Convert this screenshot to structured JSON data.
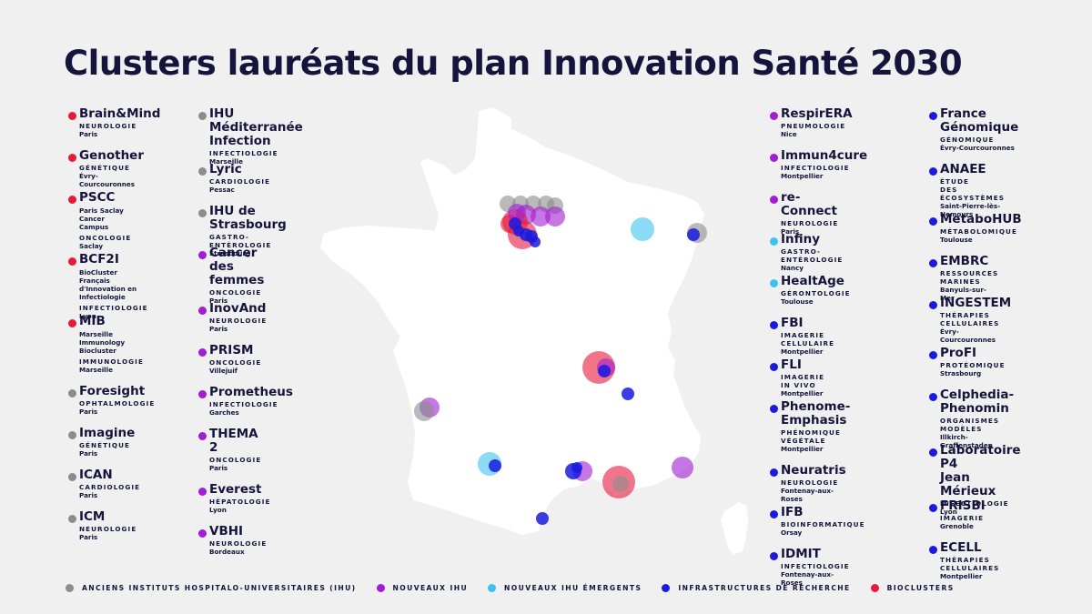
{
  "title": "Clusters lauréats du plan Innovation Santé 2030",
  "colors": {
    "ihu_anciens": "#8c8c8c",
    "ihu_nouveaux": "#a21cd1",
    "ihu_emergents": "#3ec1f0",
    "infrastructures": "#1a1ae0",
    "bioclusters": "#e8193c",
    "map_land": "#ffffff",
    "background": "#f0f0f0"
  },
  "columns": [
    {
      "entries": [
        {
          "name": "Brain&Mind",
          "group": "bioclusters",
          "lines": [
            {
              "t": "NEUROLOGIE",
              "k": "cat"
            },
            {
              "t": "Paris",
              "k": "loc"
            }
          ]
        },
        {
          "name": "Genother",
          "group": "bioclusters",
          "lines": [
            {
              "t": "GÉNÉTIQUE",
              "k": "cat"
            },
            {
              "t": "Évry-Courcouronnes",
              "k": "loc"
            }
          ]
        },
        {
          "name": "PSCC",
          "group": "bioclusters",
          "lines": [
            {
              "t": "Paris Saclay\nCancer Campus",
              "k": "org"
            },
            {
              "t": "ONCOLOGIE",
              "k": "cat"
            },
            {
              "t": "Saclay",
              "k": "loc"
            }
          ]
        },
        {
          "name": "BCF2I",
          "group": "bioclusters",
          "lines": [
            {
              "t": "BioCluster Français\nd'Innovation en Infectiologie",
              "k": "org"
            },
            {
              "t": "INFECTIOLOGIE",
              "k": "cat"
            },
            {
              "t": "Lyon",
              "k": "loc"
            }
          ]
        },
        {
          "name": "MIB",
          "group": "bioclusters",
          "lines": [
            {
              "t": "Marseille Immunology Biocluster",
              "k": "org"
            },
            {
              "t": "IMMUNOLOGIE",
              "k": "cat"
            },
            {
              "t": "Marseille",
              "k": "loc"
            }
          ]
        },
        {
          "name": "Foresight",
          "group": "ihu_anciens",
          "lines": [
            {
              "t": "OPHTALMOLOGIE",
              "k": "cat"
            },
            {
              "t": "Paris",
              "k": "loc"
            }
          ]
        },
        {
          "name": "Imagine",
          "group": "ihu_anciens",
          "lines": [
            {
              "t": "GÉNÉTIQUE",
              "k": "cat"
            },
            {
              "t": "Paris",
              "k": "loc"
            }
          ]
        },
        {
          "name": "ICAN",
          "group": "ihu_anciens",
          "lines": [
            {
              "t": "CARDIOLOGIE",
              "k": "cat"
            },
            {
              "t": "Paris",
              "k": "loc"
            }
          ]
        },
        {
          "name": "ICM",
          "group": "ihu_anciens",
          "lines": [
            {
              "t": "NEUROLOGIE",
              "k": "cat"
            },
            {
              "t": "Paris",
              "k": "loc"
            }
          ]
        }
      ]
    },
    {
      "entries": [
        {
          "name": "IHU Méditerranée\nInfection",
          "group": "ihu_anciens",
          "lines": [
            {
              "t": "INFECTIOLOGIE",
              "k": "cat"
            },
            {
              "t": "Marseille",
              "k": "loc"
            }
          ]
        },
        {
          "name": "Lyric",
          "group": "ihu_anciens",
          "lines": [
            {
              "t": "CARDIOLOGIE",
              "k": "cat"
            },
            {
              "t": "Pessac",
              "k": "loc"
            }
          ]
        },
        {
          "name": "IHU de Strasbourg",
          "group": "ihu_anciens",
          "lines": [
            {
              "t": "GASTRO-ENTÉROLOGIE",
              "k": "cat"
            },
            {
              "t": "Strasbourg",
              "k": "loc"
            }
          ]
        },
        {
          "name": "Cancer des femmes",
          "group": "ihu_nouveaux",
          "lines": [
            {
              "t": "ONCOLOGIE",
              "k": "cat"
            },
            {
              "t": "Paris",
              "k": "loc"
            }
          ]
        },
        {
          "name": "InovAnd",
          "group": "ihu_nouveaux",
          "lines": [
            {
              "t": "NEUROLOGIE",
              "k": "cat"
            },
            {
              "t": "Paris",
              "k": "loc"
            }
          ]
        },
        {
          "name": "PRISM",
          "group": "ihu_nouveaux",
          "lines": [
            {
              "t": "ONCOLOGIE",
              "k": "cat"
            },
            {
              "t": "Villejuif",
              "k": "loc"
            }
          ]
        },
        {
          "name": "Prometheus",
          "group": "ihu_nouveaux",
          "lines": [
            {
              "t": "INFECTIOLOGIE",
              "k": "cat"
            },
            {
              "t": "Garches",
              "k": "loc"
            }
          ]
        },
        {
          "name": "THEMA 2",
          "group": "ihu_nouveaux",
          "lines": [
            {
              "t": "ONCOLOGIE",
              "k": "cat"
            },
            {
              "t": "Paris",
              "k": "loc"
            }
          ]
        },
        {
          "name": "Everest",
          "group": "ihu_nouveaux",
          "lines": [
            {
              "t": "HÉPATOLOGIE",
              "k": "cat"
            },
            {
              "t": "Lyon",
              "k": "loc"
            }
          ]
        },
        {
          "name": "VBHI",
          "group": "ihu_nouveaux",
          "lines": [
            {
              "t": "NEUROLOGIE",
              "k": "cat"
            },
            {
              "t": "Bordeaux",
              "k": "loc"
            }
          ]
        }
      ]
    },
    {
      "entries": [
        {
          "name": "RespirERA",
          "group": "ihu_nouveaux",
          "lines": [
            {
              "t": "PNEUMOLOGIE",
              "k": "cat"
            },
            {
              "t": "Nice",
              "k": "loc"
            }
          ]
        },
        {
          "name": "Immun4cure",
          "group": "ihu_nouveaux",
          "lines": [
            {
              "t": "INFECTIOLOGIE",
              "k": "cat"
            },
            {
              "t": "Montpellier",
              "k": "loc"
            }
          ]
        },
        {
          "name": "re-Connect",
          "group": "ihu_nouveaux",
          "lines": [
            {
              "t": "NEUROLOGIE",
              "k": "cat"
            },
            {
              "t": "Paris",
              "k": "loc"
            }
          ]
        },
        {
          "name": "Infiny",
          "group": "ihu_emergents",
          "lines": [
            {
              "t": "GASTRO-ENTÉROLOGIE",
              "k": "cat"
            },
            {
              "t": "Nancy",
              "k": "loc"
            }
          ]
        },
        {
          "name": "HealtAge",
          "group": "ihu_emergents",
          "lines": [
            {
              "t": "GÉRONTOLOGIE",
              "k": "cat"
            },
            {
              "t": "Toulouse",
              "k": "loc"
            }
          ]
        },
        {
          "name": "FBI",
          "group": "infrastructures",
          "lines": [
            {
              "t": "IMAGERIE CELLULAIRE",
              "k": "cat"
            },
            {
              "t": "Montpellier",
              "k": "loc"
            }
          ]
        },
        {
          "name": "FLI",
          "group": "infrastructures",
          "lines": [
            {
              "t": "IMAGERIE IN VIVO",
              "k": "cat"
            },
            {
              "t": "Montpellier",
              "k": "loc"
            }
          ]
        },
        {
          "name": "Phenome-Emphasis",
          "group": "infrastructures",
          "lines": [
            {
              "t": "PHÉNOMIQUE VÉGÉTALE",
              "k": "cat"
            },
            {
              "t": "Montpellier",
              "k": "loc"
            }
          ]
        },
        {
          "name": "Neuratris",
          "group": "infrastructures",
          "lines": [
            {
              "t": "NEUROLOGIE",
              "k": "cat"
            },
            {
              "t": "Fontenay-aux-Roses",
              "k": "loc"
            }
          ]
        },
        {
          "name": "IFB",
          "group": "infrastructures",
          "lines": [
            {
              "t": "BIOINFORMATIQUE",
              "k": "cat"
            },
            {
              "t": "Orsay",
              "k": "loc"
            }
          ]
        },
        {
          "name": "IDMIT",
          "group": "infrastructures",
          "lines": [
            {
              "t": "INFECTIOLOGIE",
              "k": "cat"
            },
            {
              "t": "Fontenay-aux-Roses",
              "k": "loc"
            }
          ]
        }
      ]
    },
    {
      "entries": [
        {
          "name": "France\nGénomique",
          "group": "infrastructures",
          "lines": [
            {
              "t": "GÉNOMIQUE",
              "k": "cat"
            },
            {
              "t": "Évry-Courcouronnes",
              "k": "loc"
            }
          ]
        },
        {
          "name": "ANAEE",
          "group": "infrastructures",
          "lines": [
            {
              "t": "ÉTUDE\nDES ÉCOSYSTÈMES",
              "k": "cat"
            },
            {
              "t": "Saint-Pierre-lès-Nemours",
              "k": "loc"
            }
          ]
        },
        {
          "name": "MetaboHUB",
          "group": "infrastructures",
          "lines": [
            {
              "t": "MÉTABOLOMIQUE",
              "k": "cat"
            },
            {
              "t": "Toulouse",
              "k": "loc"
            }
          ]
        },
        {
          "name": "EMBRC",
          "group": "infrastructures",
          "lines": [
            {
              "t": "RESSOURCES MARINES",
              "k": "cat"
            },
            {
              "t": "Banyuls-sur-Mer",
              "k": "loc"
            }
          ]
        },
        {
          "name": "INGESTEM",
          "group": "infrastructures",
          "lines": [
            {
              "t": "THÉRAPIES\nCELLULAIRES",
              "k": "cat"
            },
            {
              "t": "Évry-Courcouronnes",
              "k": "loc"
            }
          ]
        },
        {
          "name": "ProFI",
          "group": "infrastructures",
          "lines": [
            {
              "t": "PROTÉOMIQUE",
              "k": "cat"
            },
            {
              "t": "Strasbourg",
              "k": "loc"
            }
          ]
        },
        {
          "name": "Celphedia-Phenomin",
          "group": "infrastructures",
          "lines": [
            {
              "t": "ORGANISMES MODÈLES",
              "k": "cat"
            },
            {
              "t": "Illkirch-Graffenstaden",
              "k": "loc"
            }
          ]
        },
        {
          "name": "Laboratoire P4\nJean Mérieux",
          "group": "infrastructures",
          "lines": [
            {
              "t": "INFECTIOLOGIE",
              "k": "cat"
            },
            {
              "t": "Lyon",
              "k": "loc"
            }
          ]
        },
        {
          "name": "FRISBI",
          "group": "infrastructures",
          "lines": [
            {
              "t": "IMAGERIE",
              "k": "cat"
            },
            {
              "t": "Grenoble",
              "k": "loc"
            }
          ]
        },
        {
          "name": "ECELL",
          "group": "infrastructures",
          "lines": [
            {
              "t": "THÉRAPIES CELLULAIRES",
              "k": "cat"
            },
            {
              "t": "Montpellier",
              "k": "loc"
            }
          ]
        }
      ]
    }
  ],
  "legend": [
    {
      "group": "ihu_anciens",
      "label": "ANCIENS INSTITUTS HOSPITALO-UNIVERSITAIRES (IHU)"
    },
    {
      "group": "ihu_nouveaux",
      "label": "NOUVEAUX IHU"
    },
    {
      "group": "ihu_emergents",
      "label": "NOUVEAUX IHU ÉMERGENTS"
    },
    {
      "group": "infrastructures",
      "label": "INFRASTRUCTURES DE RECHERCHE"
    },
    {
      "group": "bioclusters",
      "label": "BIOCLUSTERS"
    }
  ]
}
